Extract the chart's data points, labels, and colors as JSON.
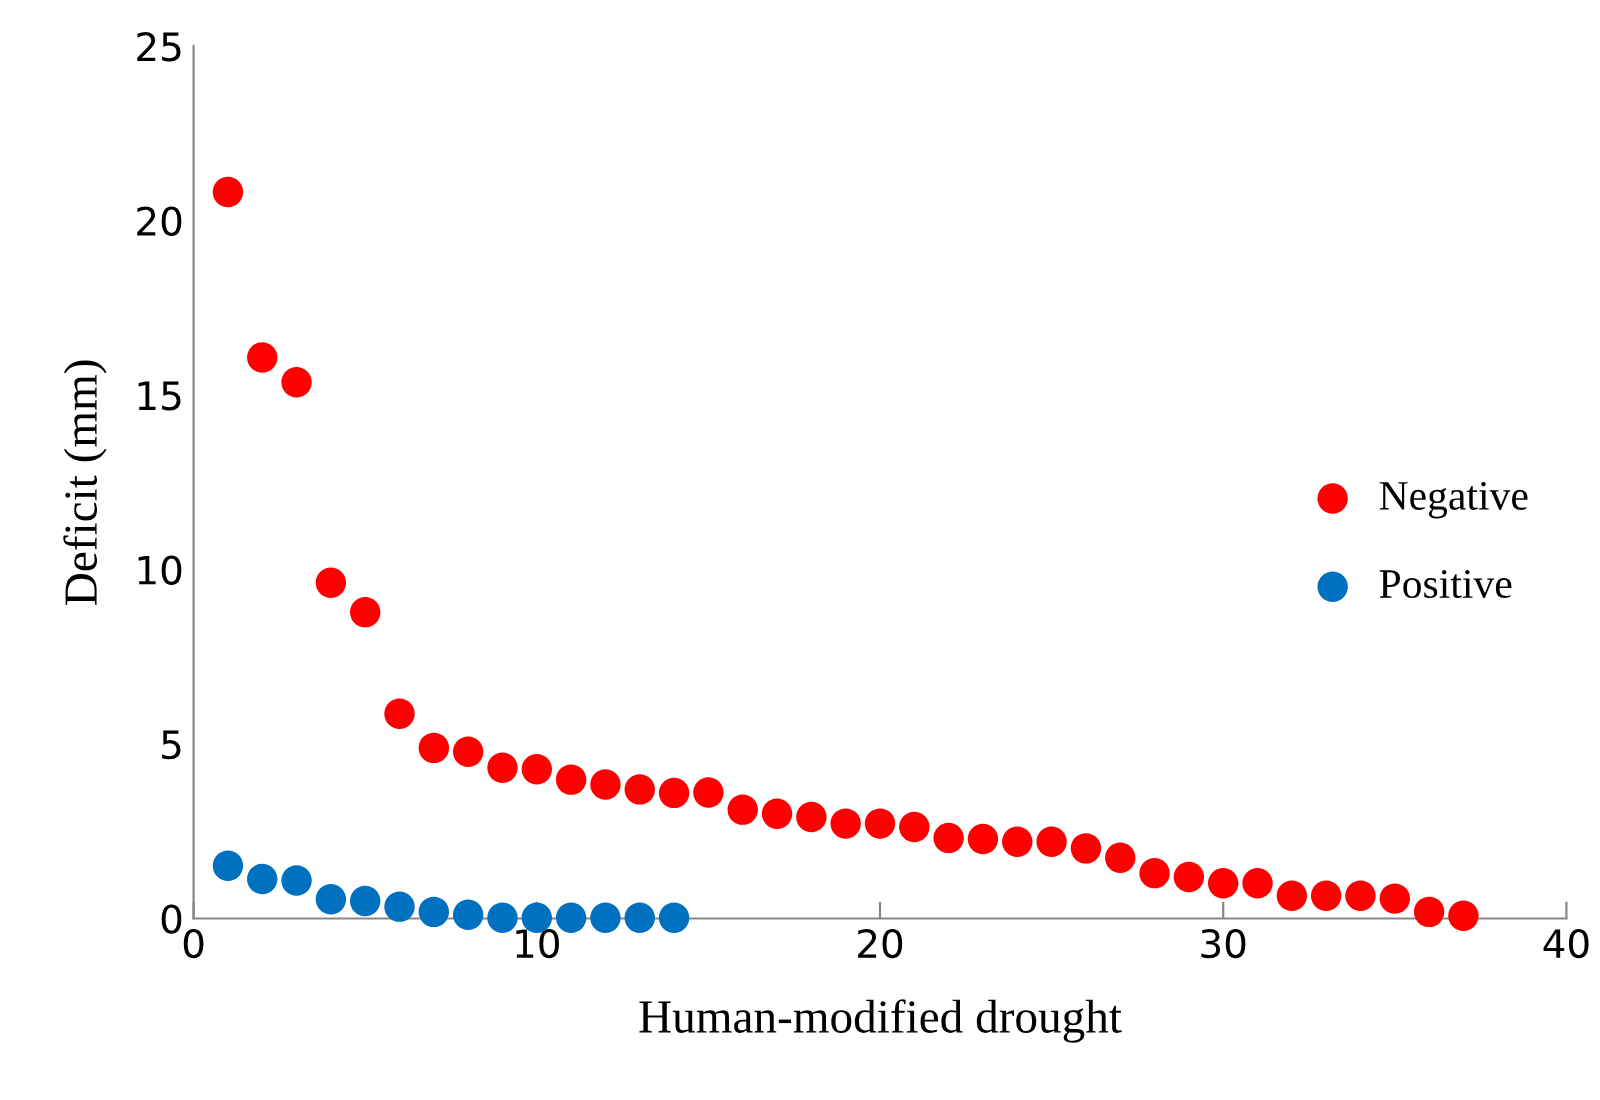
{
  "chart_data": {
    "type": "scatter",
    "xlabel": "Human-modified drought",
    "ylabel": "Deficit (mm)",
    "xlim": [
      0,
      40
    ],
    "xticks": [
      0,
      10,
      20,
      30,
      40
    ],
    "ylim": [
      0,
      25
    ],
    "yticks": [
      0,
      5,
      10,
      15,
      20,
      25
    ],
    "marker": "circle",
    "grid": false,
    "legend": "right",
    "series": [
      {
        "name": "Negative",
        "color": "#ff0000",
        "x": [
          1,
          2,
          3,
          4,
          5,
          6,
          7,
          8,
          9,
          10,
          11,
          12,
          13,
          14,
          15,
          16,
          17,
          18,
          19,
          20,
          21,
          22,
          23,
          24,
          25,
          26,
          27,
          28,
          29,
          30,
          31,
          32,
          33,
          34,
          35,
          36,
          37
        ],
        "values": [
          20.82,
          16.08,
          15.37,
          9.62,
          8.78,
          5.87,
          4.89,
          4.78,
          4.32,
          4.28,
          3.98,
          3.84,
          3.7,
          3.6,
          3.61,
          3.12,
          3.0,
          2.91,
          2.72,
          2.72,
          2.62,
          2.31,
          2.28,
          2.2,
          2.2,
          2.01,
          1.74,
          1.3,
          1.19,
          1.01,
          1.01,
          0.65,
          0.65,
          0.65,
          0.57,
          0.19,
          0.08
        ]
      },
      {
        "name": "Positive",
        "color": "#0070c0",
        "x": [
          1,
          2,
          3,
          4,
          5,
          6,
          7,
          8,
          9,
          10,
          11,
          12,
          13,
          14
        ],
        "values": [
          1.51,
          1.13,
          1.09,
          0.55,
          0.5,
          0.34,
          0.19,
          0.11,
          0.02,
          0.02,
          0.02,
          0.02,
          0.02,
          0.02
        ]
      }
    ]
  }
}
